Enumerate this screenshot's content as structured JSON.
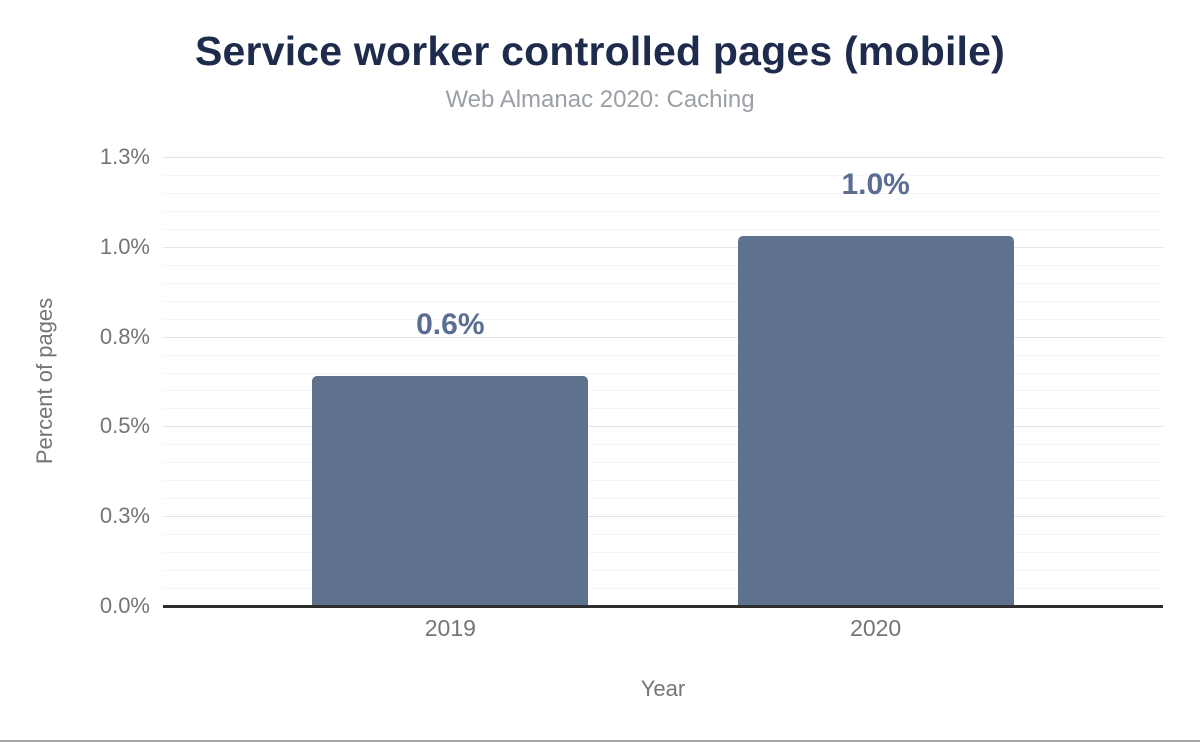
{
  "chart_data": {
    "type": "bar",
    "title": "Service worker controlled pages (mobile)",
    "subtitle": "Web Almanac 2020: Caching",
    "xlabel": "Year",
    "ylabel": "Percent of pages",
    "categories": [
      "2019",
      "2020"
    ],
    "values": [
      0.64,
      1.03
    ],
    "value_labels": [
      "0.6%",
      "1.0%"
    ],
    "yticks": [
      {
        "value": 0,
        "label": "0.0%"
      },
      {
        "value": 0.25,
        "label": "0.3%"
      },
      {
        "value": 0.5,
        "label": "0.5%"
      },
      {
        "value": 0.75,
        "label": "0.8%"
      },
      {
        "value": 1.0,
        "label": "1.0%"
      },
      {
        "value": 1.25,
        "label": "1.3%"
      }
    ],
    "minor_tick_step": 0.05,
    "ylim": [
      0,
      1.25
    ],
    "grid": true,
    "legend": "none",
    "colors": {
      "title": "#1e2b4d",
      "subtitle": "#9aa0a6",
      "axis_text": "#757575",
      "bar": "#5e718d",
      "bar_label": "#5b6d90",
      "grid_major": "#e4e4e4",
      "grid_minor": "#f5f5f5",
      "axis_line": "#2d2d2d",
      "page_border": "#a6a6a6"
    }
  }
}
